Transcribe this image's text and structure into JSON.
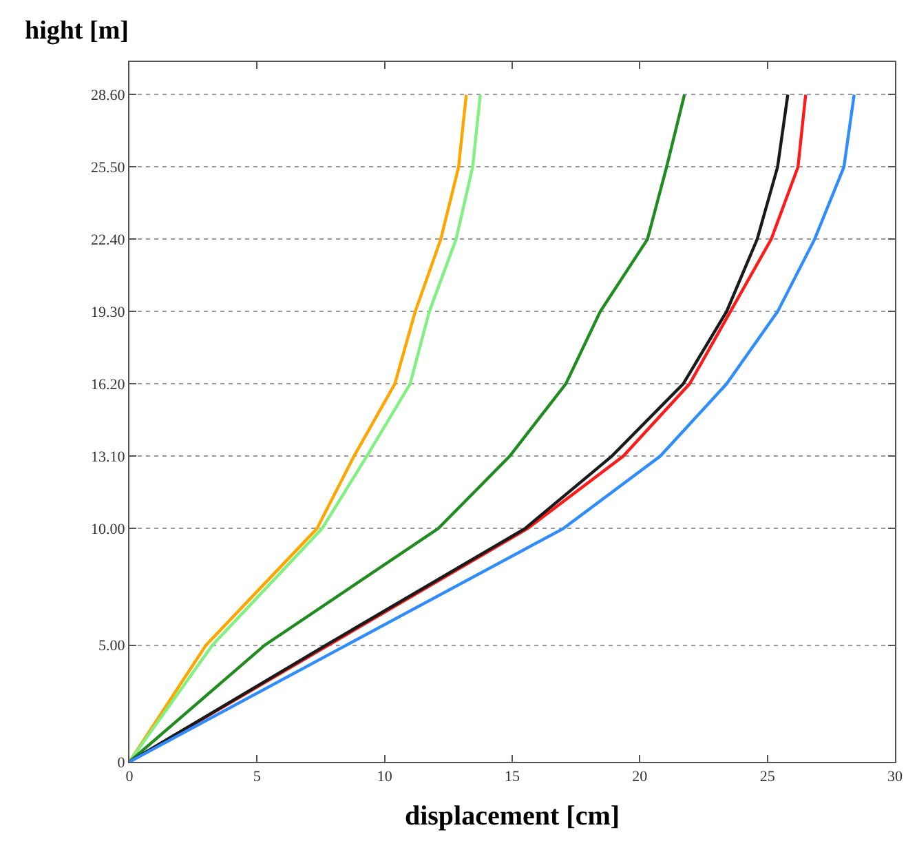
{
  "chart_data": {
    "type": "line",
    "xlabel": "displacement [cm]",
    "ylabel": "hight [m]",
    "xlim": [
      0,
      30
    ],
    "xticks": [
      0,
      5,
      10,
      15,
      20,
      25,
      30
    ],
    "ylim": [
      0,
      30
    ],
    "yticks": [
      0,
      {
        "value": 5,
        "label": "5.00"
      },
      {
        "value": 10,
        "label": "10.00"
      },
      {
        "value": 13.1,
        "label": "13.10"
      },
      {
        "value": 16.2,
        "label": "16.20"
      },
      {
        "value": 19.3,
        "label": "19.30"
      },
      {
        "value": 22.4,
        "label": "22.40"
      },
      {
        "value": 25.5,
        "label": "25.50"
      },
      {
        "value": 28.6,
        "label": "28.60"
      }
    ],
    "grid": "y",
    "marker": "none",
    "line_style": "solid",
    "series": [
      {
        "color": "#ffa500",
        "x": [
          0,
          3.0,
          7.35,
          8.8,
          10.4,
          11.2,
          12.2,
          12.9,
          13.2
        ],
        "values": [
          0,
          5,
          10,
          13.1,
          16.2,
          19.3,
          22.4,
          25.5,
          28.6
        ]
      },
      {
        "color": "#80f080",
        "x": [
          0,
          3.25,
          7.55,
          9.3,
          11.0,
          11.75,
          12.8,
          13.45,
          13.75
        ],
        "values": [
          0,
          5,
          10,
          13.1,
          16.2,
          19.3,
          22.4,
          25.5,
          28.6
        ]
      },
      {
        "color": "#1e8c1e",
        "x": [
          0,
          5.3,
          12.1,
          14.9,
          17.1,
          18.45,
          20.3,
          21.05,
          21.75
        ],
        "values": [
          0,
          5,
          10,
          13.1,
          16.2,
          19.3,
          22.4,
          25.5,
          28.6
        ]
      },
      {
        "color": "#ff1a1a",
        "x": [
          0,
          7.8,
          15.6,
          19.35,
          21.95,
          23.55,
          25.15,
          26.2,
          26.5
        ],
        "values": [
          0,
          5,
          10,
          13.1,
          16.2,
          19.3,
          22.4,
          25.5,
          28.6
        ]
      },
      {
        "color": "#1a1a1a",
        "x": [
          0,
          7.7,
          15.5,
          18.9,
          21.7,
          23.4,
          24.6,
          25.4,
          25.8
        ],
        "values": [
          0,
          5,
          10,
          13.1,
          16.2,
          19.3,
          22.4,
          25.5,
          28.6
        ]
      },
      {
        "color": "#2f8cff",
        "x": [
          0,
          8.5,
          17.0,
          20.8,
          23.4,
          25.4,
          26.85,
          28.0,
          28.4
        ],
        "values": [
          0,
          5,
          10,
          13.1,
          16.2,
          19.3,
          22.4,
          25.5,
          28.6
        ]
      }
    ]
  }
}
